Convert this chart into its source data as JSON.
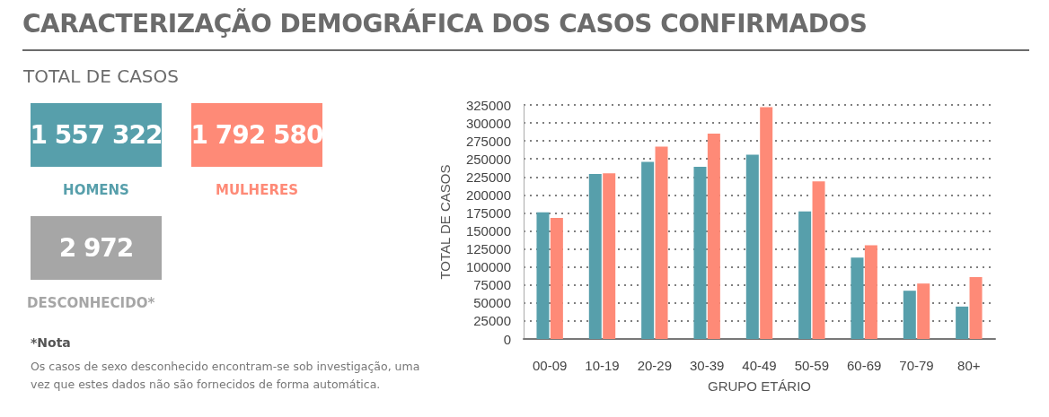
{
  "chart_data": [
    {
      "type": "other",
      "title": "CARACTERIZAÇÃO DEMOGRÁFICA DOS CASOS CONFIRMADOS",
      "subtitle": "TOTAL DE CASOS",
      "categories": [
        "HOMENS",
        "MULHERES",
        "DESCONHECIDO*"
      ],
      "value_labels": [
        "1 557 322",
        "1 792 580",
        "2 972"
      ],
      "colors": [
        "#579fab",
        "#fe8a77",
        "#a6a6a6"
      ],
      "annotations": [
        "*Nota",
        "Os casos de sexo desconhecido encontram-se sob investigação, uma vez que estes dados não são fornecidos de forma automática."
      ]
    },
    {
      "type": "bar",
      "xlabel": "GRUPO ETÁRIO",
      "ylabel": "TOTAL DE CASOS",
      "categories": [
        "00-09",
        "10-19",
        "20-29",
        "30-39",
        "40-49",
        "50-59",
        "60-69",
        "70-79",
        "80+"
      ],
      "series": [
        {
          "color": "#579fab",
          "values": [
            176000,
            229000,
            246000,
            239000,
            256000,
            177000,
            113000,
            67000,
            45000
          ]
        },
        {
          "color": "#fe8a77",
          "values": [
            168000,
            230000,
            267000,
            285000,
            322000,
            219000,
            130000,
            77000,
            86000
          ]
        }
      ],
      "ylim": [
        0,
        325000
      ],
      "yticks": [
        0,
        25000,
        50000,
        75000,
        100000,
        125000,
        150000,
        175000,
        200000,
        225000,
        250000,
        275000,
        300000,
        325000
      ],
      "grid": "y"
    }
  ]
}
